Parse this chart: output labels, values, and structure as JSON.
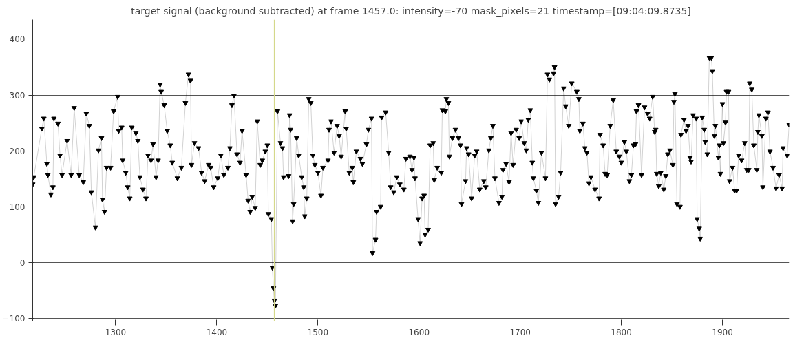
{
  "chart_data": {
    "type": "line",
    "title": "target signal (background subtracted) at frame 1457.0: intensity=-70 mask_pixels=21 timestamp=[09:04:09.8735]",
    "xlim": [
      1218,
      1966
    ],
    "ylim": [
      -105,
      435
    ],
    "xticks": [
      1300,
      1400,
      1500,
      1600,
      1700,
      1800,
      1900
    ],
    "yticks": [
      -100,
      0,
      100,
      200,
      300,
      400
    ],
    "grid": "y",
    "marker": "triangle",
    "line_style": "solid",
    "ref_lines": [
      {
        "axis": "x",
        "value": 1457,
        "color": "#d4d88a"
      }
    ],
    "series": [
      {
        "color": "#000000",
        "x": [
          1218,
          1219,
          1227,
          1229,
          1232,
          1233,
          1236,
          1238,
          1239,
          1243,
          1245,
          1247,
          1252,
          1256,
          1259,
          1264,
          1268,
          1271,
          1274,
          1276,
          1280,
          1283,
          1286,
          1287,
          1289,
          1291,
          1295,
          1298,
          1302,
          1303,
          1306,
          1307,
          1310,
          1312,
          1314,
          1316,
          1320,
          1322,
          1324,
          1327,
          1330,
          1332,
          1335,
          1337,
          1340,
          1342,
          1344,
          1345,
          1348,
          1351,
          1354,
          1356,
          1361,
          1365,
          1369,
          1372,
          1374,
          1375,
          1378,
          1382,
          1385,
          1388,
          1392,
          1394,
          1397,
          1401,
          1404,
          1407,
          1411,
          1413,
          1415,
          1417,
          1420,
          1423,
          1425,
          1429,
          1431,
          1433,
          1435,
          1438,
          1440,
          1443,
          1445,
          1448,
          1450,
          1451,
          1454,
          1455,
          1456,
          1457,
          1458,
          1460,
          1463,
          1465,
          1466,
          1471,
          1472,
          1473,
          1475,
          1476,
          1479,
          1481,
          1484,
          1486,
          1487,
          1489,
          1491,
          1493,
          1495,
          1497,
          1500,
          1503,
          1505,
          1510,
          1511,
          1513,
          1516,
          1519,
          1521,
          1523,
          1527,
          1528,
          1531,
          1534,
          1535,
          1538,
          1542,
          1544,
          1548,
          1550,
          1553,
          1554,
          1557,
          1558,
          1562,
          1563,
          1567,
          1570,
          1572,
          1575,
          1578,
          1581,
          1585,
          1587,
          1591,
          1593,
          1595,
          1596,
          1599,
          1601,
          1603,
          1605,
          1606,
          1609,
          1611,
          1614,
          1615,
          1618,
          1622,
          1623,
          1626,
          1627,
          1629,
          1630,
          1633,
          1636,
          1639,
          1641,
          1642,
          1646,
          1647,
          1649,
          1652,
          1655,
          1657,
          1660,
          1664,
          1666,
          1669,
          1671,
          1673,
          1675,
          1679,
          1682,
          1683,
          1686,
          1689,
          1691,
          1693,
          1696,
          1699,
          1701,
          1704,
          1706,
          1708,
          1710,
          1712,
          1713,
          1716,
          1718,
          1721,
          1725,
          1727,
          1729,
          1733,
          1734,
          1735,
          1738,
          1740,
          1743,
          1745,
          1748,
          1751,
          1756,
          1758,
          1759,
          1762,
          1764,
          1766,
          1768,
          1770,
          1774,
          1778,
          1779,
          1782,
          1784,
          1786,
          1789,
          1792,
          1795,
          1798,
          1800,
          1803,
          1805,
          1808,
          1810,
          1812,
          1814,
          1815,
          1817,
          1820,
          1823,
          1826,
          1828,
          1831,
          1833,
          1834,
          1835,
          1837,
          1839,
          1842,
          1844,
          1846,
          1848,
          1851,
          1852,
          1853,
          1855,
          1858,
          1859,
          1862,
          1864,
          1866,
          1868,
          1869,
          1871,
          1874,
          1875,
          1877,
          1878,
          1880,
          1882,
          1883,
          1885,
          1887,
          1889,
          1890,
          1892,
          1893,
          1896,
          1897,
          1898,
          1900,
          1901,
          1903,
          1904,
          1906,
          1907,
          1910,
          1912,
          1914,
          1916,
          1919,
          1922,
          1924,
          1926,
          1927,
          1929,
          1931,
          1934,
          1935,
          1936,
          1939,
          1940,
          1943,
          1945,
          1947,
          1950,
          1953,
          1956,
          1959,
          1960,
          1964,
          1966
        ],
        "values": [
          140,
          153,
          240,
          258,
          177,
          157,
          122,
          135,
          258,
          249,
          192,
          157,
          218,
          157,
          277,
          157,
          144,
          267,
          245,
          126,
          63,
          201,
          223,
          113,
          91,
          170,
          170,
          271,
          297,
          236,
          242,
          183,
          161,
          135,
          115,
          242,
          232,
          218,
          153,
          131,
          115,
          192,
          183,
          212,
          153,
          183,
          319,
          306,
          282,
          236,
          210,
          179,
          151,
          170,
          286,
          337,
          326,
          175,
          214,
          205,
          161,
          146,
          175,
          170,
          135,
          151,
          192,
          157,
          170,
          205,
          282,
          299,
          194,
          179,
          236,
          157,
          111,
          91,
          118,
          98,
          253,
          175,
          183,
          199,
          210,
          87,
          78,
          -9,
          -46,
          -68,
          -77,
          271,
          214,
          205,
          153,
          155,
          264,
          238,
          74,
          105,
          223,
          192,
          153,
          135,
          83,
          115,
          293,
          286,
          192,
          175,
          161,
          120,
          170,
          183,
          238,
          253,
          197,
          245,
          227,
          190,
          271,
          240,
          161,
          170,
          144,
          199,
          186,
          177,
          212,
          238,
          258,
          17,
          41,
          91,
          100,
          260,
          269,
          197,
          135,
          126,
          153,
          140,
          131,
          186,
          190,
          166,
          188,
          151,
          78,
          35,
          115,
          120,
          50,
          59,
          210,
          214,
          148,
          170,
          161,
          273,
          271,
          293,
          286,
          190,
          223,
          238,
          223,
          210,
          105,
          146,
          205,
          194,
          115,
          192,
          199,
          131,
          146,
          135,
          201,
          223,
          245,
          151,
          107,
          118,
          166,
          177,
          144,
          232,
          175,
          238,
          223,
          253,
          214,
          201,
          256,
          273,
          179,
          151,
          129,
          107,
          197,
          151,
          337,
          328,
          339,
          350,
          105,
          118,
          161,
          312,
          280,
          245,
          321,
          306,
          293,
          236,
          249,
          205,
          197,
          142,
          153,
          131,
          115,
          229,
          210,
          159,
          157,
          245,
          291,
          199,
          190,
          179,
          216,
          199,
          146,
          157,
          210,
          212,
          271,
          282,
          157,
          278,
          267,
          258,
          297,
          234,
          238,
          159,
          137,
          161,
          131,
          155,
          194,
          201,
          175,
          288,
          302,
          105,
          100,
          229,
          256,
          236,
          245,
          188,
          181,
          264,
          258,
          78,
          61,
          43,
          260,
          238,
          216,
          194,
          367,
          367,
          343,
          227,
          245,
          188,
          210,
          159,
          284,
          214,
          251,
          306,
          306,
          146,
          170,
          129,
          129,
          192,
          183,
          214,
          166,
          166,
          321,
          310,
          210,
          166,
          234,
          264,
          227,
          135,
          258,
          269,
          199,
          170,
          133,
          157,
          133,
          205,
          192,
          247
        ]
      }
    ]
  }
}
